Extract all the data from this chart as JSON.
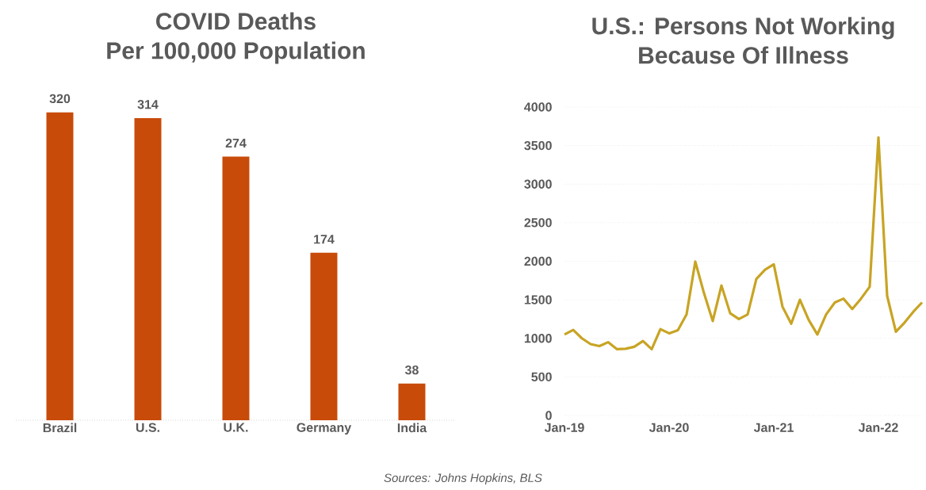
{
  "chart_data": [
    {
      "type": "bar",
      "title": "COVID Deaths",
      "subtitle": "Per 100,000 Population",
      "categories": [
        "Brazil",
        "U.S.",
        "U.K.",
        "Germany",
        "India"
      ],
      "values": [
        320,
        314,
        274,
        174,
        38
      ],
      "color": "#c84b0a",
      "data_labels": true,
      "tick_labels": "x",
      "annotations": [
        "Sources: Johns Hopkins, BLS"
      ]
    },
    {
      "type": "line",
      "title": "U.S.: Persons Not Working",
      "subtitle": "Because Of Illness",
      "x": [
        "2019-01",
        "2019-02",
        "2019-03",
        "2019-04",
        "2019-05",
        "2019-06",
        "2019-07",
        "2019-08",
        "2019-09",
        "2019-10",
        "2019-11",
        "2019-12",
        "2020-01",
        "2020-02",
        "2020-03",
        "2020-04",
        "2020-05",
        "2020-06",
        "2020-07",
        "2020-08",
        "2020-09",
        "2020-10",
        "2020-11",
        "2020-12",
        "2021-01",
        "2021-02",
        "2021-03",
        "2021-04",
        "2021-05",
        "2021-06",
        "2021-07",
        "2021-08",
        "2021-09",
        "2021-10",
        "2021-11",
        "2021-12",
        "2022-01",
        "2022-02",
        "2022-03",
        "2022-04",
        "2022-05",
        "2022-06"
      ],
      "values": [
        1050,
        1110,
        1000,
        925,
        900,
        950,
        860,
        865,
        890,
        965,
        860,
        1120,
        1065,
        1105,
        1310,
        1995,
        1585,
        1225,
        1685,
        1325,
        1250,
        1310,
        1770,
        1890,
        1960,
        1410,
        1190,
        1500,
        1240,
        1050,
        1310,
        1465,
        1515,
        1380,
        1515,
        1670,
        3605,
        1550,
        1085,
        1205,
        1345,
        1465
      ],
      "color": "#c8a424",
      "grid": "y",
      "xlim": [
        "2019-01",
        "2022-06"
      ],
      "ylim": [
        0,
        4000
      ],
      "yticks": [
        0,
        500,
        1000,
        1500,
        2000,
        2500,
        3000,
        3500,
        4000
      ],
      "xticks": [
        {
          "value": "2019-01",
          "label": "Jan-19"
        },
        {
          "value": "2020-01",
          "label": "Jan-20"
        },
        {
          "value": "2021-01",
          "label": "Jan-21"
        },
        {
          "value": "2022-01",
          "label": "Jan-22"
        }
      ]
    }
  ]
}
